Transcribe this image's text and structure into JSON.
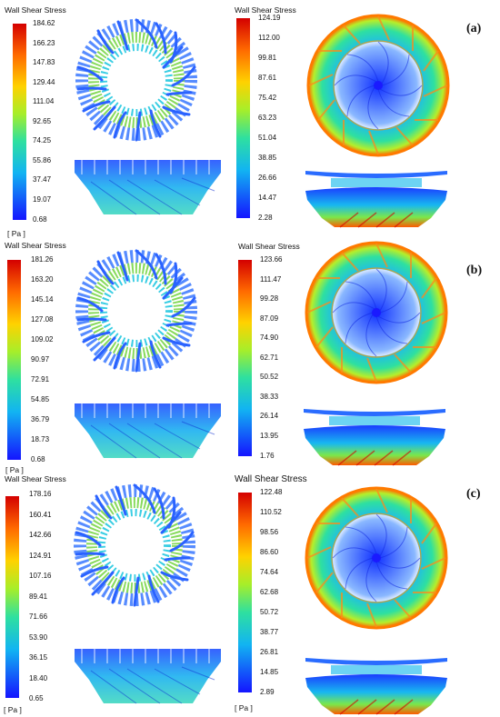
{
  "colorbar_title": "Wall Shear Stress",
  "unit": "[ Pa ]",
  "colormap": [
    "#d40000",
    "#ff6a00",
    "#ffd200",
    "#a6ee2a",
    "#2ee0a0",
    "#12b4f2",
    "#1414ff"
  ],
  "rows": [
    {
      "label": "(a)",
      "left_ticks": [
        "184.62",
        "166.23",
        "147.83",
        "129.44",
        "111.04",
        "92.65",
        "74.25",
        "55.86",
        "37.47",
        "19.07",
        "0.68"
      ],
      "right_ticks": [
        "124.19",
        "112.00",
        "99.81",
        "87.61",
        "75.42",
        "63.23",
        "51.04",
        "38.85",
        "26.66",
        "14.47",
        "2.28"
      ]
    },
    {
      "label": "(b)",
      "left_ticks": [
        "181.26",
        "163.20",
        "145.14",
        "127.08",
        "109.02",
        "90.97",
        "72.91",
        "54.85",
        "36.79",
        "18.73",
        "0.68"
      ],
      "right_ticks": [
        "123.66",
        "111.47",
        "99.28",
        "87.09",
        "74.90",
        "62.71",
        "50.52",
        "38.33",
        "26.14",
        "13.95",
        "1.76"
      ]
    },
    {
      "label": "(c)",
      "left_ticks": [
        "178.16",
        "160.41",
        "142.66",
        "124.91",
        "107.16",
        "89.41",
        "71.66",
        "53.90",
        "36.15",
        "18.40",
        "0.65"
      ],
      "right_ticks": [
        "122.48",
        "110.52",
        "98.56",
        "86.60",
        "74.64",
        "62.68",
        "50.72",
        "38.77",
        "26.81",
        "14.85",
        "2.89"
      ]
    }
  ]
}
